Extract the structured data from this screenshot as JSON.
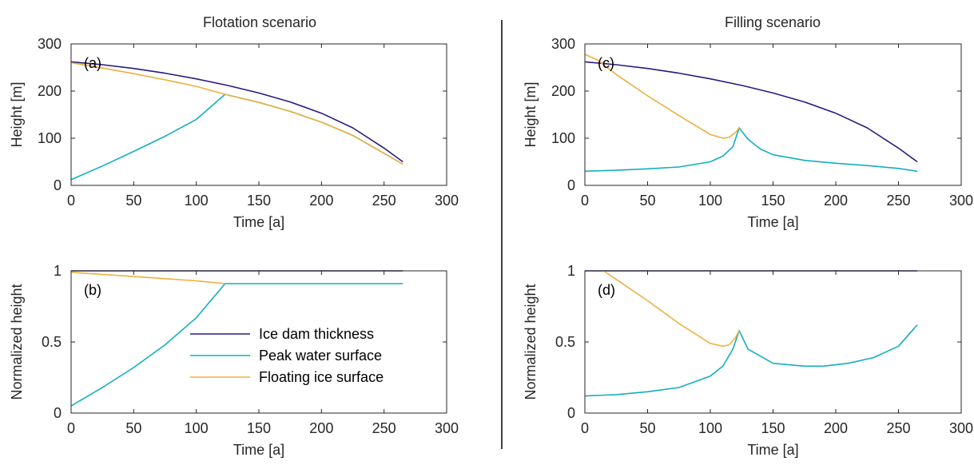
{
  "colors": {
    "ice_dam": "#2c1a7e",
    "peak_water": "#14aec0",
    "floating_ice": "#edb13f",
    "axis": "#262626",
    "divider": "#000000"
  },
  "column_titles": {
    "left": "Flotation scenario",
    "right": "Filling scenario"
  },
  "legend": {
    "placement": "inside-lower-right of panel (b)",
    "entries": [
      "Ice dam thickness",
      "Peak water surface",
      "Floating ice surface"
    ]
  },
  "chart_data": [
    {
      "id": "a",
      "panel_label": "(a)",
      "type": "line",
      "xlabel": "Time [a]",
      "ylabel": "Height [m]",
      "xlim": [
        0,
        300
      ],
      "ylim": [
        0,
        300
      ],
      "xticks": [
        0,
        50,
        100,
        150,
        200,
        250,
        300
      ],
      "yticks": [
        0,
        100,
        200,
        300
      ],
      "x_tick_labels": [
        "0",
        "50",
        "100",
        "150",
        "200",
        "250",
        "300"
      ],
      "y_tick_labels": [
        "0",
        "100",
        "200",
        "300"
      ],
      "grid": false,
      "series": [
        {
          "name": "Ice dam thickness",
          "x": [
            0,
            25,
            50,
            75,
            100,
            125,
            150,
            175,
            200,
            225,
            250,
            265
          ],
          "y": [
            262,
            256,
            248,
            238,
            226,
            212,
            196,
            177,
            153,
            122,
            79,
            50
          ]
        },
        {
          "name": "Peak water surface",
          "x": [
            0,
            25,
            50,
            75,
            100,
            123,
            150,
            175,
            200,
            225,
            250,
            265
          ],
          "y": [
            12,
            41,
            72,
            104,
            140,
            193,
            176,
            157,
            134,
            106,
            68,
            45
          ]
        },
        {
          "name": "Floating ice surface",
          "x": [
            0,
            25,
            50,
            75,
            100,
            123,
            150,
            175,
            200,
            225,
            250,
            265
          ],
          "y": [
            260,
            249,
            237,
            224,
            210,
            193,
            176,
            157,
            134,
            106,
            68,
            45
          ]
        }
      ]
    },
    {
      "id": "b",
      "panel_label": "(b)",
      "type": "line",
      "xlabel": "Time [a]",
      "ylabel": "Normalized height",
      "xlim": [
        0,
        300
      ],
      "ylim": [
        0,
        1
      ],
      "xticks": [
        0,
        50,
        100,
        150,
        200,
        250,
        300
      ],
      "yticks": [
        0,
        0.5,
        1
      ],
      "x_tick_labels": [
        "0",
        "50",
        "100",
        "150",
        "200",
        "250",
        "300"
      ],
      "y_tick_labels": [
        "0",
        "0.5",
        "1"
      ],
      "grid": false,
      "series": [
        {
          "name": "Ice dam thickness",
          "x": [
            0,
            50,
            100,
            150,
            200,
            265
          ],
          "y": [
            1,
            1,
            1,
            1,
            1,
            1
          ]
        },
        {
          "name": "Peak water surface",
          "x": [
            0,
            25,
            50,
            75,
            100,
            123,
            150,
            200,
            250,
            265
          ],
          "y": [
            0.05,
            0.18,
            0.32,
            0.48,
            0.67,
            0.91,
            0.91,
            0.91,
            0.91,
            0.91
          ]
        },
        {
          "name": "Floating ice surface",
          "x": [
            0,
            25,
            50,
            75,
            100,
            123
          ],
          "y": [
            0.99,
            0.975,
            0.96,
            0.945,
            0.93,
            0.91
          ]
        }
      ]
    },
    {
      "id": "c",
      "panel_label": "(c)",
      "type": "line",
      "xlabel": "Time [a]",
      "ylabel": "Height [m]",
      "xlim": [
        0,
        300
      ],
      "ylim": [
        0,
        300
      ],
      "xticks": [
        0,
        50,
        100,
        150,
        200,
        250,
        300
      ],
      "yticks": [
        0,
        100,
        200,
        300
      ],
      "x_tick_labels": [
        "0",
        "50",
        "100",
        "150",
        "200",
        "250",
        "300"
      ],
      "y_tick_labels": [
        "0",
        "100",
        "200",
        "300"
      ],
      "grid": false,
      "series": [
        {
          "name": "Ice dam thickness",
          "x": [
            0,
            25,
            50,
            75,
            100,
            125,
            150,
            175,
            200,
            225,
            250,
            265
          ],
          "y": [
            262,
            256,
            248,
            238,
            226,
            212,
            196,
            177,
            153,
            122,
            79,
            50
          ]
        },
        {
          "name": "Peak water surface",
          "x": [
            0,
            25,
            50,
            75,
            100,
            110,
            118,
            123,
            130,
            140,
            150,
            175,
            200,
            225,
            250,
            265
          ],
          "y": [
            30,
            32,
            35,
            39,
            50,
            62,
            82,
            122,
            98,
            77,
            65,
            53,
            47,
            42,
            36,
            30
          ]
        },
        {
          "name": "Floating ice surface",
          "x": [
            0,
            10,
            25,
            50,
            75,
            100,
            110,
            115,
            120,
            123
          ],
          "y": [
            278,
            266,
            235,
            190,
            148,
            108,
            100,
            102,
            112,
            122
          ]
        }
      ]
    },
    {
      "id": "d",
      "panel_label": "(d)",
      "type": "line",
      "xlabel": "Time [a]",
      "ylabel": "Normalized height",
      "xlim": [
        0,
        300
      ],
      "ylim": [
        0,
        1
      ],
      "xticks": [
        0,
        50,
        100,
        150,
        200,
        250,
        300
      ],
      "yticks": [
        0,
        0.5,
        1
      ],
      "x_tick_labels": [
        "0",
        "50",
        "100",
        "150",
        "200",
        "250",
        "300"
      ],
      "y_tick_labels": [
        "0",
        "0.5",
        "1"
      ],
      "grid": false,
      "series": [
        {
          "name": "Ice dam thickness",
          "x": [
            0,
            50,
            100,
            150,
            200,
            265
          ],
          "y": [
            1,
            1,
            1,
            1,
            1,
            1
          ]
        },
        {
          "name": "Peak water surface",
          "x": [
            0,
            25,
            50,
            75,
            100,
            110,
            118,
            123,
            130,
            150,
            175,
            190,
            210,
            230,
            250,
            265
          ],
          "y": [
            0.12,
            0.13,
            0.15,
            0.18,
            0.26,
            0.33,
            0.45,
            0.58,
            0.45,
            0.35,
            0.33,
            0.33,
            0.35,
            0.39,
            0.47,
            0.62
          ]
        },
        {
          "name": "Floating ice surface",
          "x": [
            15,
            25,
            50,
            75,
            100,
            110,
            115,
            120,
            123
          ],
          "y": [
            1.0,
            0.94,
            0.79,
            0.63,
            0.49,
            0.47,
            0.48,
            0.53,
            0.58
          ]
        }
      ]
    }
  ]
}
